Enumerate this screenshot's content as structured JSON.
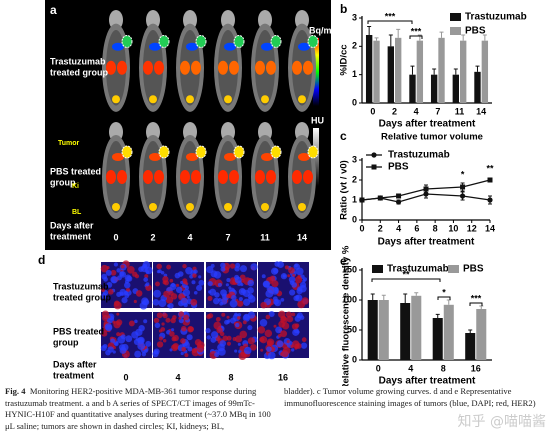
{
  "panel_a": {
    "label": "a",
    "row_labels": [
      [
        "Trastuzumab",
        "treated group"
      ],
      [
        "PBS treated",
        "group"
      ]
    ],
    "days_label": [
      "Days after",
      "treatment"
    ],
    "days": [
      "0",
      "2",
      "4",
      "7",
      "11",
      "14"
    ],
    "colorbar_labels": [
      "Bq/mL",
      "HU"
    ],
    "organ_labels": [
      "Tumor",
      "Ki",
      "BL"
    ]
  },
  "panel_d": {
    "label": "d",
    "row_labels": [
      [
        "Trastuzumab",
        "treated group"
      ],
      [
        "PBS treated",
        "group"
      ]
    ],
    "days_label": [
      "Days after",
      "treatment"
    ],
    "days": [
      "0",
      "4",
      "8",
      "16"
    ]
  },
  "chart_data": [
    {
      "type": "bar",
      "panel_label": "b",
      "x_label": "Days after treatment",
      "y_label": "%ID/cc",
      "categories": [
        "0",
        "2",
        "4",
        "7",
        "11",
        "14"
      ],
      "series": [
        {
          "name": "Trastuzumab",
          "color": "#111111",
          "values": [
            2.4,
            2.0,
            1.0,
            1.0,
            1.0,
            1.1
          ],
          "errors": [
            0.3,
            0.4,
            0.3,
            0.2,
            0.2,
            0.2
          ]
        },
        {
          "name": "PBS",
          "color": "#999999",
          "values": [
            2.2,
            2.3,
            2.2,
            2.3,
            2.2,
            2.2
          ],
          "errors": [
            0.1,
            0.3,
            0.2,
            0.2,
            0.2,
            0.2
          ]
        }
      ],
      "ylim": [
        0,
        3
      ],
      "yticks": [
        0,
        1,
        2,
        3
      ],
      "annotations": [
        "***",
        "***"
      ]
    },
    {
      "type": "line",
      "panel_label": "c",
      "title": "Relative tumor volume",
      "x_label": "Days after treatment",
      "y_label": "Ratio (vt / v0)",
      "x": [
        0,
        2,
        4,
        7,
        11,
        14
      ],
      "series": [
        {
          "name": "Trastuzumab",
          "color": "#111111",
          "marker": "circle",
          "values": [
            1.0,
            1.1,
            0.9,
            1.3,
            1.2,
            1.0
          ],
          "errors": [
            0.1,
            0.1,
            0.1,
            0.2,
            0.2,
            0.2
          ]
        },
        {
          "name": "PBS",
          "color": "#111111",
          "marker": "square",
          "values": [
            1.0,
            1.1,
            1.2,
            1.55,
            1.65,
            2.0
          ],
          "errors": [
            0.1,
            0.1,
            0.1,
            0.2,
            0.2,
            0.1
          ]
        }
      ],
      "xlim": [
        0,
        14
      ],
      "xticks": [
        0,
        2,
        4,
        6,
        8,
        10,
        12,
        14
      ],
      "ylim": [
        0,
        3
      ],
      "yticks": [
        0,
        1,
        2,
        3
      ],
      "annotations": [
        "*",
        "**"
      ]
    },
    {
      "type": "bar",
      "panel_label": "e",
      "x_label": "Days after treatment",
      "y_label": "Relative fluorescence density %",
      "categories": [
        "0",
        "4",
        "8",
        "16"
      ],
      "series": [
        {
          "name": "Trastuzumab",
          "color": "#111111",
          "values": [
            100,
            95,
            70,
            45
          ],
          "errors": [
            10,
            15,
            6,
            5
          ]
        },
        {
          "name": "PBS",
          "color": "#999999",
          "values": [
            100,
            107,
            92,
            85
          ],
          "errors": [
            8,
            5,
            8,
            5
          ]
        }
      ],
      "ylim": [
        0,
        150
      ],
      "yticks": [
        0,
        50,
        100,
        150
      ],
      "annotations": [
        "**",
        "*",
        "***"
      ]
    }
  ],
  "caption": {
    "label": "Fig. 4",
    "left": "Monitoring HER2-positive MDA-MB-361 tumor response during trastuzumab treatment. a and b A series of SPECT/CT images of 99mTc-HYNIC-H10F and quantitative analyses during treatment (~37.0 MBq in 100 μL saline; tumors are shown in dashed circles; KI, kidneys; BL,",
    "right": "bladder). c Tumor volume growing curves. d and e Representative immunofluorescence staining images of tumors (blue, DAPI; red, HER2)"
  },
  "watermark": "知乎 @喵喵酱"
}
